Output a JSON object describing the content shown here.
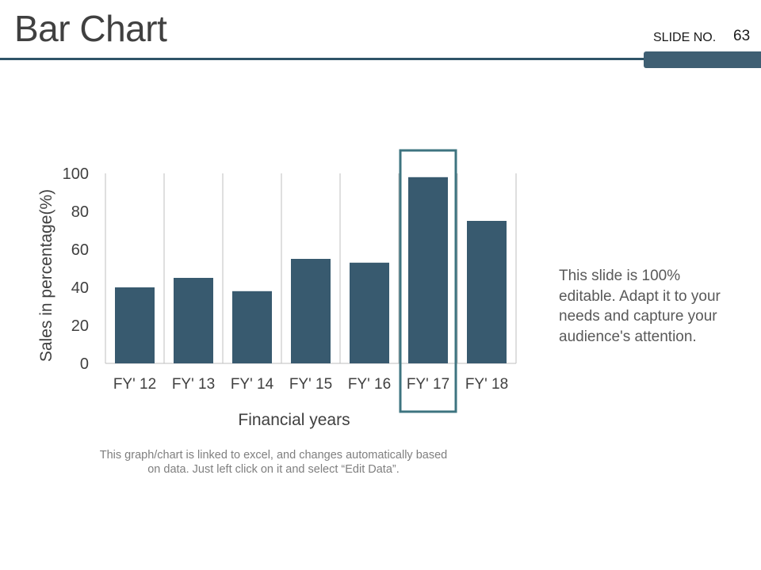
{
  "slide": {
    "title": "Bar Chart",
    "slide_label": "SLIDE NO.",
    "slide_number": "63",
    "side_text": "This slide is 100% editable. Adapt it to your needs and capture your audience's attention.",
    "footnote": "This graph/chart is linked to excel, and changes automatically based on data. Just left click on it and select “Edit Data”."
  },
  "chart_data": {
    "type": "bar",
    "categories": [
      "FY' 12",
      "FY' 13",
      "FY' 14",
      "FY' 15",
      "FY' 16",
      "FY' 17",
      "FY' 18"
    ],
    "values": [
      40,
      45,
      38,
      55,
      53,
      98,
      75
    ],
    "xlabel": "Financial years",
    "ylabel": "Sales in percentage(%)",
    "ylim": [
      0,
      100
    ],
    "yticks": [
      0,
      20,
      40,
      60,
      80,
      100
    ],
    "grid": "vertical",
    "highlighted_category": "FY' 17",
    "colors": {
      "bar": "#385a6f",
      "highlight": "#3e7480",
      "grid": "#bfbfbf",
      "tick_text": "#404040"
    }
  }
}
